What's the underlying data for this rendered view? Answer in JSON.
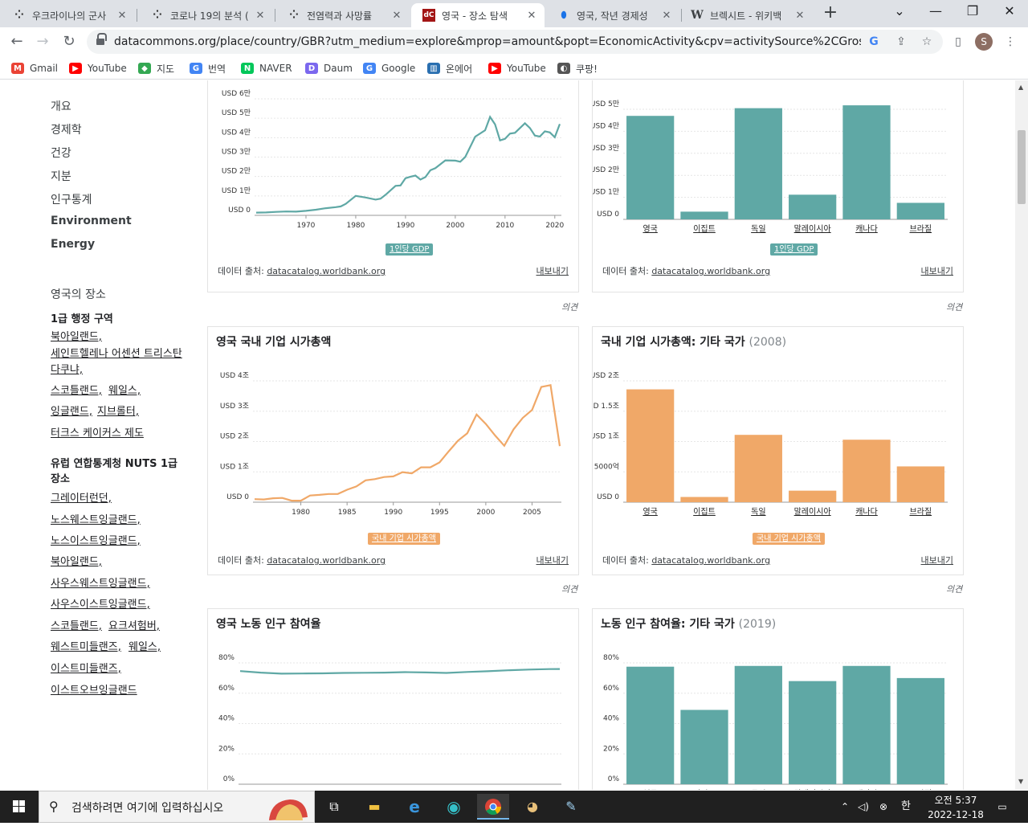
{
  "browser": {
    "tabs": [
      {
        "title": "우크라이나의 군사",
        "icon": "dots-icon"
      },
      {
        "title": "코로나 19의 분석 (",
        "icon": "dots-icon"
      },
      {
        "title": "전염력과 사망률 ",
        "icon": "dots-icon"
      },
      {
        "title": "영국 - 장소 탐색 ",
        "icon": "dc-icon",
        "icon_text": "dC"
      },
      {
        "title": "영국, 작년 경제성",
        "icon": "shield-icon"
      },
      {
        "title": "브렉시트 - 위키백",
        "icon": "wikipedia-icon",
        "icon_text": "W"
      }
    ],
    "active_tab": 3,
    "url": "datacommons.org/place/country/GBR?utm_medium=explore&mprop=amount&popt=EconomicActivity&cpv=activitySource%2CGrossDomesticP...",
    "profile_initial": "S",
    "bookmarks": [
      {
        "label": "Gmail",
        "color": "#ea4335",
        "icon_text": "M"
      },
      {
        "label": "YouTube",
        "color": "#ff0000",
        "icon_text": "▶"
      },
      {
        "label": "지도",
        "color": "#34a853",
        "icon_text": "◆"
      },
      {
        "label": "번역",
        "color": "#4285f4",
        "icon_text": "G"
      },
      {
        "label": "NAVER",
        "color": "#03c75a",
        "icon_text": "N"
      },
      {
        "label": "Daum",
        "color": "#7b68ee",
        "icon_text": "D"
      },
      {
        "label": "Google",
        "color": "#4285f4",
        "icon_text": "G"
      },
      {
        "label": "온에어",
        "color": "#2a6fb0",
        "icon_text": "▥"
      },
      {
        "label": "YouTube",
        "color": "#ff0000",
        "icon_text": "▶"
      },
      {
        "label": "쿠팡!",
        "color": "#555555",
        "icon_text": "◐"
      }
    ]
  },
  "sidebar": {
    "topics": [
      "개요",
      "경제학",
      "건강",
      "지분",
      "인구통계",
      "Environment",
      "Energy"
    ],
    "places_heading": "영국의 장소",
    "admin1_heading": "1급 행정 구역",
    "admin1_links": [
      "북아일랜드,",
      "세인트헬레나 어센션 트리스탄다쿠냐,",
      "스코틀랜드,",
      "웨일스,",
      "잉글랜드,",
      "지브롤터,",
      "터크스 케이커스 제도"
    ],
    "nuts_heading": "유럽 연합통계청 NUTS 1급 장소",
    "nuts_links": [
      "그레이터런던,",
      "노스웨스트잉글랜드,",
      "노스이스트잉글랜드,",
      "북아일랜드,",
      "사우스웨스트잉글랜드,",
      "사우스이스트잉글랜드,",
      "스코틀랜드,",
      "요크셔험버,",
      "웨스트미들랜즈,",
      "웨일스,",
      "이스트미들랜즈,",
      "이스트오브잉글랜드"
    ]
  },
  "common": {
    "source_label": "데이터 출처:",
    "source_link": "datacatalog.worldbank.org",
    "export_label": "내보내기",
    "feedback_label": "의견"
  },
  "cards": {
    "gdp_line": {
      "legend": "1인당 GDP"
    },
    "gdp_bar": {
      "legend": "1인당 GDP"
    },
    "mcap_line": {
      "title": "영국 국내 기업 시가총액",
      "legend": "국내 기업 시가총액"
    },
    "mcap_bar": {
      "title": "국내 기업 시가총액: 기타 국가",
      "year": "(2008)",
      "legend": "국내 기업 시가총액"
    },
    "labor_line": {
      "title": "영국 노동 인구 참여율"
    },
    "labor_bar": {
      "title": "노동 인구 참여율: 기타 국가",
      "year": "(2019)"
    }
  },
  "chart_data": [
    {
      "id": "gdp_line",
      "type": "line",
      "color": "#5fa8a5",
      "ylim": [
        0,
        60000
      ],
      "yticks": [
        "USD 0",
        "USD 1만",
        "USD 2만",
        "USD 3만",
        "USD 4만",
        "USD 5만",
        "USD 6만"
      ],
      "xlim": [
        1960,
        2021
      ],
      "xticks": [
        1970,
        1980,
        1990,
        2000,
        2010,
        2020
      ],
      "x": [
        1960,
        1962,
        1964,
        1966,
        1968,
        1970,
        1972,
        1974,
        1976,
        1977,
        1978,
        1980,
        1982,
        1984,
        1985,
        1986,
        1988,
        1989,
        1990,
        1991,
        1992,
        1993,
        1994,
        1995,
        1996,
        1998,
        2000,
        2001,
        2002,
        2004,
        2006,
        2007,
        2008,
        2009,
        2010,
        2011,
        2012,
        2014,
        2015,
        2016,
        2017,
        2018,
        2019,
        2020,
        2021
      ],
      "values": [
        1400,
        1500,
        1800,
        2000,
        1900,
        2300,
        2900,
        3700,
        4200,
        4600,
        5900,
        10000,
        9200,
        8100,
        8600,
        10600,
        15200,
        15400,
        19100,
        19900,
        20500,
        18400,
        19700,
        23200,
        24300,
        28300,
        28200,
        27600,
        30100,
        40500,
        43800,
        50700,
        46900,
        38600,
        39400,
        42100,
        42500,
        47400,
        45000,
        41100,
        40600,
        43300,
        42700,
        40200,
        47000
      ]
    },
    {
      "id": "gdp_bar",
      "type": "bar",
      "color": "#5fa8a5",
      "ylim": [
        0,
        50000
      ],
      "yticks": [
        "USD 0",
        "USD 1만",
        "USD 2만",
        "USD 3만",
        "USD 4만",
        "USD 5만"
      ],
      "categories": [
        "영국",
        "이집트",
        "독일",
        "말레이시아",
        "캐나다",
        "브라질"
      ],
      "values": [
        47000,
        3500,
        50500,
        11200,
        51800,
        7500
      ]
    },
    {
      "id": "mcap_line",
      "type": "line",
      "color": "#f0a868",
      "ylim": [
        0,
        4000000000000
      ],
      "yticks": [
        "USD 0",
        "USD 1조",
        "USD 2조",
        "USD 3조",
        "USD 4조"
      ],
      "xlim": [
        1975,
        2008
      ],
      "xticks": [
        1980,
        1985,
        1990,
        1995,
        2000,
        2005
      ],
      "x": [
        1975,
        1976,
        1977,
        1978,
        1979,
        1980,
        1981,
        1982,
        1983,
        1984,
        1985,
        1986,
        1987,
        1988,
        1989,
        1990,
        1991,
        1992,
        1993,
        1994,
        1995,
        1996,
        1997,
        1998,
        1999,
        2000,
        2001,
        2002,
        2003,
        2004,
        2005,
        2006,
        2007,
        2008
      ],
      "values": [
        100000000000,
        90000000000,
        130000000000,
        140000000000,
        50000000000,
        50000000000,
        220000000000,
        240000000000,
        270000000000,
        270000000000,
        410000000000,
        520000000000,
        720000000000,
        760000000000,
        830000000000,
        850000000000,
        990000000000,
        950000000000,
        1150000000000,
        1150000000000,
        1310000000000,
        1680000000000,
        2030000000000,
        2270000000000,
        2890000000000,
        2580000000000,
        2200000000000,
        1860000000000,
        2400000000000,
        2780000000000,
        3040000000000,
        3800000000000,
        3860000000000,
        1850000000000
      ]
    },
    {
      "id": "mcap_bar",
      "type": "bar",
      "color": "#f0a868",
      "ylim": [
        0,
        2000000000000
      ],
      "yticks": [
        "USD 0",
        "USD 5000억",
        "USD 1조",
        "USD 1.5조",
        "USD 2조"
      ],
      "categories": [
        "영국",
        "이집트",
        "독일",
        "말레이시아",
        "캐나다",
        "브라질"
      ],
      "values": [
        1860000000000,
        86000000000,
        1110000000000,
        190000000000,
        1030000000000,
        590000000000
      ]
    },
    {
      "id": "labor_line",
      "type": "line",
      "color": "#5fa8a5",
      "ylim": [
        0,
        80
      ],
      "yticks": [
        "0%",
        "20%",
        "40%",
        "60%",
        "80%"
      ],
      "xlim": [
        1990,
        2021
      ],
      "xticks": [],
      "x": [
        1990,
        1992,
        1994,
        1996,
        1998,
        2000,
        2002,
        2004,
        2006,
        2008,
        2010,
        2012,
        2014,
        2016,
        2018,
        2020,
        2021
      ],
      "values": [
        74.6,
        73.6,
        72.9,
        73.0,
        73.1,
        73.4,
        73.5,
        73.6,
        73.9,
        73.7,
        73.4,
        74.0,
        74.5,
        75.1,
        75.6,
        75.9,
        76.0
      ]
    },
    {
      "id": "labor_bar",
      "type": "bar",
      "color": "#5fa8a5",
      "ylim": [
        0,
        80
      ],
      "yticks": [
        "0%",
        "20%",
        "40%",
        "60%",
        "80%"
      ],
      "categories": [
        "영국",
        "이집트",
        "독일",
        "말레이시아",
        "캐나다",
        "브라질"
      ],
      "values": [
        77.5,
        49.0,
        78.0,
        68.0,
        78.0,
        70.0
      ]
    }
  ],
  "taskbar": {
    "search_placeholder": "검색하려면 여기에 입력하십시오",
    "ime": "한",
    "time": "오전 5:37",
    "date": "2022-12-18"
  }
}
